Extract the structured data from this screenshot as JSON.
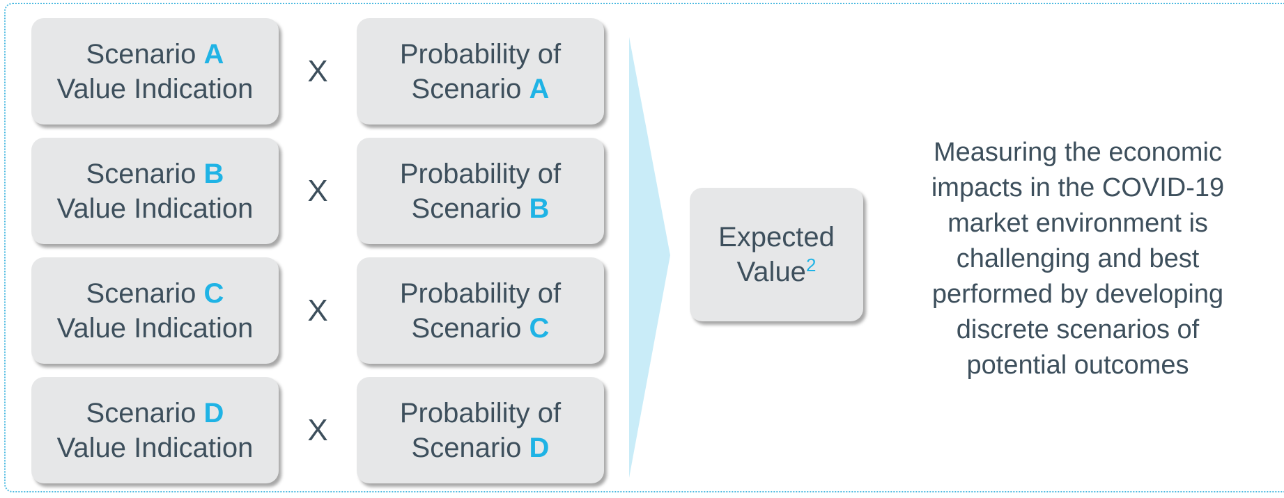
{
  "rows": [
    {
      "left": {
        "line1": "Scenario",
        "letter": "A",
        "line2": "Value Indication"
      },
      "operator": "X",
      "right": {
        "line1": "Probability of",
        "line2": "Scenario",
        "letter": "A"
      }
    },
    {
      "left": {
        "line1": "Scenario",
        "letter": "B",
        "line2": "Value Indication"
      },
      "operator": "X",
      "right": {
        "line1": "Probability of",
        "line2": "Scenario",
        "letter": "B"
      }
    },
    {
      "left": {
        "line1": "Scenario",
        "letter": "C",
        "line2": "Value Indication"
      },
      "operator": "X",
      "right": {
        "line1": "Probability of",
        "line2": "Scenario",
        "letter": "C"
      }
    },
    {
      "left": {
        "line1": "Scenario",
        "letter": "D",
        "line2": "Value Indication"
      },
      "operator": "X",
      "right": {
        "line1": "Probability of",
        "line2": "Scenario",
        "letter": "D"
      }
    }
  ],
  "result": {
    "line1": "Expected",
    "line2": "Value",
    "footnote": "2"
  },
  "description": "Measuring the economic impacts in the COVID-19 market environment is challenging and best performed by developing discrete scenarios of potential outcomes"
}
